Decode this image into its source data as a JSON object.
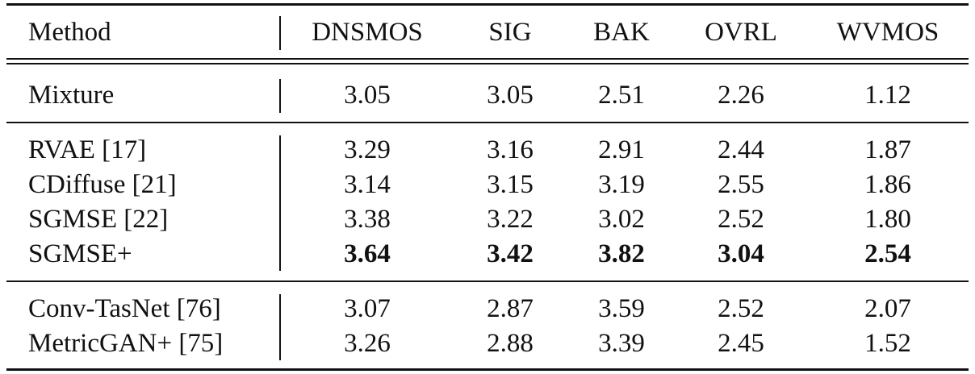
{
  "table": {
    "header": [
      "Method",
      "DNSMOS",
      "SIG",
      "BAK",
      "OVRL",
      "WVMOS"
    ],
    "rows": [
      [
        "Mixture",
        "3.05",
        "3.05",
        "2.51",
        "2.26",
        "1.12"
      ],
      [
        "RVAE [17]",
        "3.29",
        "3.16",
        "2.91",
        "2.44",
        "1.87"
      ],
      [
        "CDiffuse [21]",
        "3.14",
        "3.15",
        "3.19",
        "2.55",
        "1.86"
      ],
      [
        "SGMSE [22]",
        "3.38",
        "3.22",
        "3.02",
        "2.52",
        "1.80"
      ],
      [
        "SGMSE+",
        "3.64",
        "3.42",
        "3.82",
        "3.04",
        "2.54"
      ],
      [
        "Conv-TasNet [76]",
        "3.07",
        "2.87",
        "3.59",
        "2.52",
        "2.07"
      ],
      [
        "MetricGAN+ [75]",
        "3.26",
        "2.88",
        "3.39",
        "2.45",
        "1.52"
      ]
    ]
  }
}
